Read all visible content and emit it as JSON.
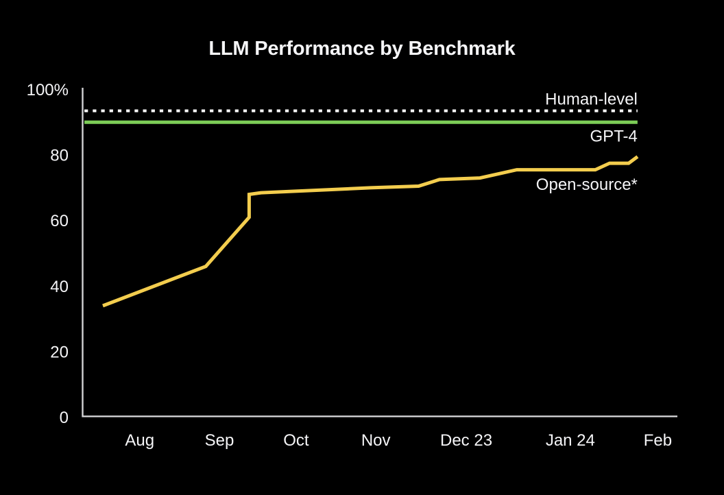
{
  "chart_data": {
    "type": "line",
    "title": "LLM Performance by Benchmark",
    "xlabel": "",
    "ylabel": "",
    "ylim": [
      0,
      100
    ],
    "grid": false,
    "legend_position": "inline-right-labels",
    "background_color": "#000000",
    "axis_color": "#d4d4d6",
    "text_color": "#f5f5f7",
    "y_ticks": [
      {
        "label": "100%",
        "value": 100
      },
      {
        "label": "80",
        "value": 80
      },
      {
        "label": "60",
        "value": 60
      },
      {
        "label": "40",
        "value": 40
      },
      {
        "label": "20",
        "value": 20
      },
      {
        "label": "0",
        "value": 0
      }
    ],
    "x_ticks": [
      {
        "label": "Aug",
        "pos": 0.096
      },
      {
        "label": "Sep",
        "pos": 0.23
      },
      {
        "label": "Oct",
        "pos": 0.359
      },
      {
        "label": "Nov",
        "pos": 0.493
      },
      {
        "label": "Dec 23",
        "pos": 0.645
      },
      {
        "label": "Jan 24",
        "pos": 0.82
      },
      {
        "label": "Feb",
        "pos": 0.967
      }
    ],
    "series": [
      {
        "name": "human-level",
        "label": "Human-level",
        "kind": "reference-line",
        "line_style": "dotted",
        "color": "#ffffff",
        "value": 93.5,
        "x_start": 0.003,
        "x_end": 0.933
      },
      {
        "name": "gpt-4",
        "label": "GPT-4",
        "kind": "reference-line",
        "line_style": "solid",
        "color": "#7ccd57",
        "value": 90,
        "x_start": 0.003,
        "x_end": 0.933
      },
      {
        "name": "open-source",
        "label": "Open-source*",
        "kind": "line",
        "line_style": "solid",
        "color": "#f3cd4e",
        "points": [
          {
            "x": 0.034,
            "date": "mid-Jul",
            "value": 34
          },
          {
            "x": 0.207,
            "date": "late Aug",
            "value": 46
          },
          {
            "x": 0.28,
            "date": "mid-Sep",
            "value": 61
          },
          {
            "x": 0.28,
            "date": "mid-Sep (jump)",
            "value": 68
          },
          {
            "x": 0.3,
            "date": "mid-Sep",
            "value": 68.5
          },
          {
            "x": 0.484,
            "date": "early Nov",
            "value": 70
          },
          {
            "x": 0.565,
            "date": "mid-Nov",
            "value": 70.5
          },
          {
            "x": 0.6,
            "date": "late Nov",
            "value": 72.5
          },
          {
            "x": 0.668,
            "date": "mid-Dec",
            "value": 73
          },
          {
            "x": 0.73,
            "date": "late Dec",
            "value": 75.5
          },
          {
            "x": 0.862,
            "date": "mid-Jan",
            "value": 75.5
          },
          {
            "x": 0.886,
            "date": "mid-Jan",
            "value": 77.5
          },
          {
            "x": 0.918,
            "date": "late Jan",
            "value": 77.5
          },
          {
            "x": 0.933,
            "date": "late Jan",
            "value": 79.5
          }
        ]
      }
    ]
  }
}
